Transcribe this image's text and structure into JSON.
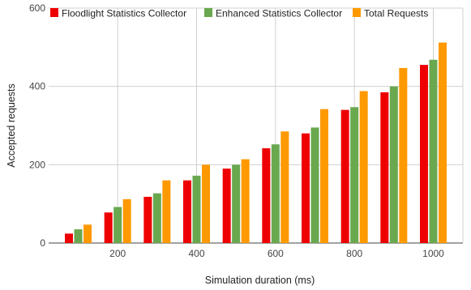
{
  "chart_data": {
    "type": "bar",
    "x": [
      100,
      200,
      300,
      400,
      500,
      600,
      700,
      800,
      900,
      1000
    ],
    "series": [
      {
        "name": "Floodlight Statistics Collector",
        "color": "#ee0000",
        "values": [
          24,
          78,
          118,
          160,
          190,
          242,
          280,
          340,
          385,
          455
        ]
      },
      {
        "name": "Enhanced Statistics Collector",
        "color": "#6aa84f",
        "values": [
          35,
          92,
          127,
          172,
          200,
          252,
          295,
          347,
          400,
          468
        ]
      },
      {
        "name": "Total Requests",
        "color": "#ff9900",
        "values": [
          47,
          112,
          160,
          200,
          214,
          285,
          342,
          388,
          447,
          512
        ]
      }
    ],
    "xlabel": "Simulation duration (ms)",
    "ylabel": "Accepted requests",
    "xticks": [
      "200",
      "400",
      "600",
      "800",
      "1000"
    ],
    "yticks": [
      "0",
      "200",
      "400",
      "600"
    ],
    "ylim": [
      0,
      600
    ],
    "grid": true,
    "legend_position": "top"
  }
}
